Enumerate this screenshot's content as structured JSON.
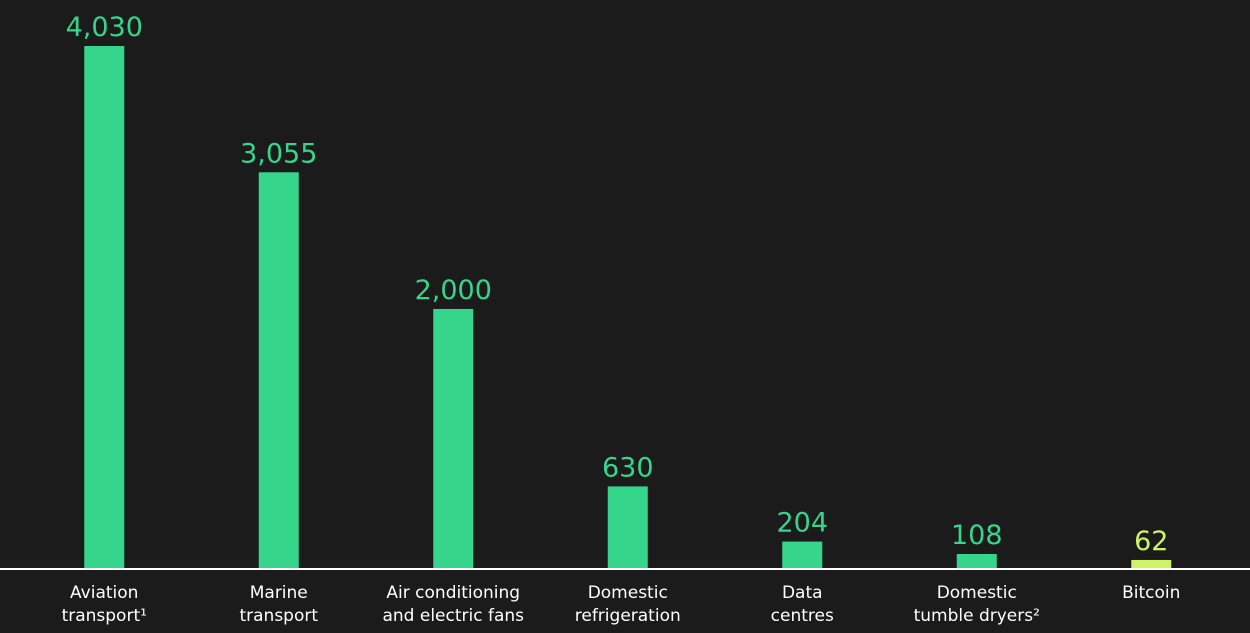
{
  "chart_data": {
    "type": "bar",
    "categories": [
      "Aviation\ntransport¹",
      "Marine\ntransport",
      "Air conditioning\nand electric fans",
      "Domestic\nrefrigeration",
      "Data\ncentres",
      "Domestic\ntumble dryers²",
      "Bitcoin"
    ],
    "values": [
      4030,
      3055,
      2000,
      630,
      204,
      108,
      62
    ],
    "value_labels": [
      "4,030",
      "3,055",
      "2,000",
      "630",
      "204",
      "108",
      "62"
    ],
    "colors": [
      "#35d58b",
      "#35d58b",
      "#35d58b",
      "#35d58b",
      "#35d58b",
      "#35d58b",
      "#cdf462"
    ],
    "ylim": [
      0,
      4030
    ]
  }
}
